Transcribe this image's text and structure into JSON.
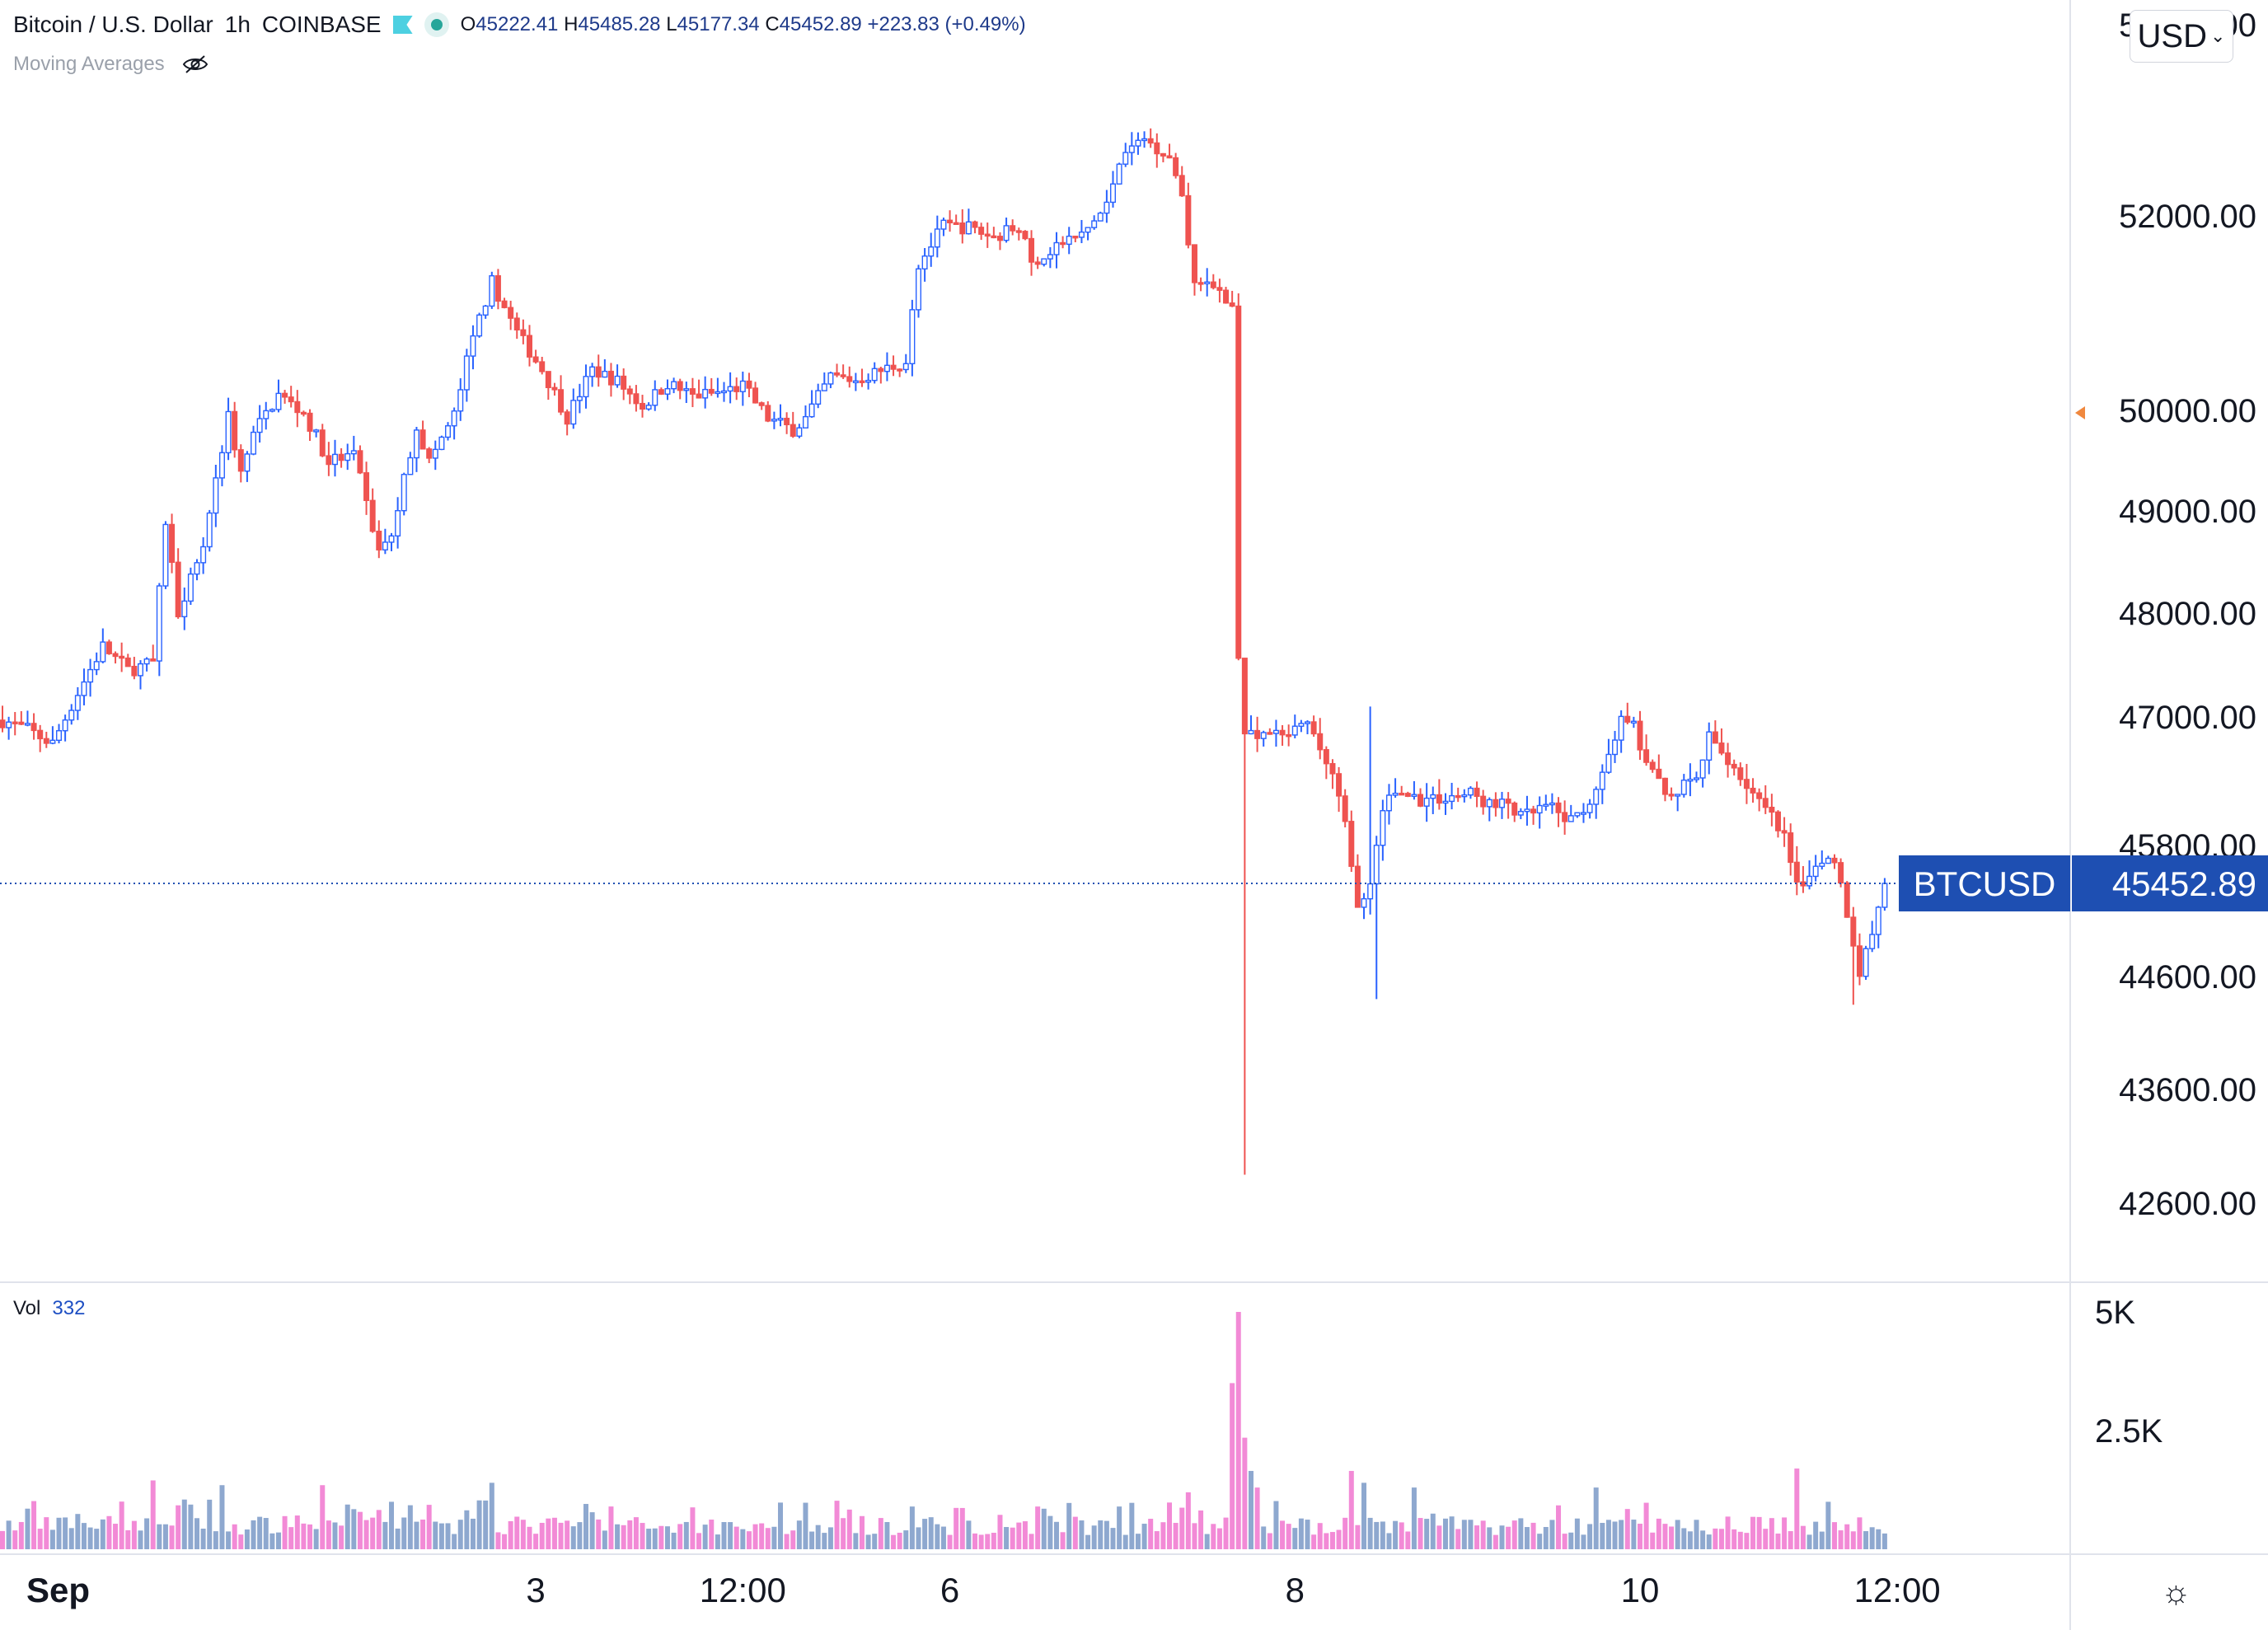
{
  "header": {
    "symbol": "Bitcoin / U.S. Dollar",
    "interval": "1h",
    "exchange": "COINBASE",
    "open_label": "O",
    "open": "45222.41",
    "high_label": "H",
    "high": "45485.28",
    "low_label": "L",
    "low": "45177.34",
    "close_label": "C",
    "close": "45452.89",
    "change": "+223.83 (+0.49%)",
    "indicator": "Moving Averages",
    "icons": [
      "flag-icon",
      "status-dot-icon",
      "eye-off-icon",
      "chevron-down-icon",
      "gear-icon"
    ]
  },
  "volume_legend": {
    "label": "Vol",
    "value": "332"
  },
  "currency_button": {
    "label": "USD"
  },
  "colors": {
    "up": "#2962FF",
    "down": "#EF5350",
    "vol_up": "#8EA8CF",
    "vol_down": "#F28AD6",
    "axis_text": "#131722",
    "price_tag": "#1E4FB2",
    "grid_line": "#e0e3eb"
  },
  "chart_data": {
    "type": "candlestick",
    "title": "Bitcoin / U.S. Dollar · 1h · COINBASE",
    "y_ticks": [
      "54000.00",
      "52000.00",
      "50000.00",
      "49000.00",
      "48000.00",
      "47000.00",
      "45800.00",
      "44600.00",
      "43600.00",
      "42600.00"
    ],
    "y_tick_values": [
      54000,
      52000,
      50000,
      49000,
      48000,
      47000,
      45800,
      44600,
      43600,
      42600
    ],
    "x_ticks": [
      {
        "label": "Sep",
        "t": 0,
        "bold": true
      },
      {
        "label": "3",
        "t": 85
      },
      {
        "label": "12:00",
        "t": 118
      },
      {
        "label": "6",
        "t": 151
      },
      {
        "label": "8",
        "t": 206
      },
      {
        "label": "10",
        "t": 261
      },
      {
        "label": "12:00",
        "t": 302
      }
    ],
    "current_price": {
      "label": "BTCUSD",
      "value": "45452.89",
      "numeric": 45452.89
    },
    "volume_ticks": [
      {
        "label": "5K",
        "value": 5000
      },
      {
        "label": "2.5K",
        "value": 2500
      }
    ],
    "waypoints": [
      [
        0,
        46970
      ],
      [
        4,
        46880
      ],
      [
        8,
        46750
      ],
      [
        12,
        47230
      ],
      [
        16,
        47680
      ],
      [
        20,
        47450
      ],
      [
        24,
        47520
      ],
      [
        26,
        48900
      ],
      [
        28,
        48020
      ],
      [
        32,
        48670
      ],
      [
        36,
        49950
      ],
      [
        38,
        49360
      ],
      [
        40,
        49760
      ],
      [
        44,
        50160
      ],
      [
        48,
        49970
      ],
      [
        52,
        49500
      ],
      [
        56,
        49550
      ],
      [
        60,
        48600
      ],
      [
        62,
        48770
      ],
      [
        66,
        49850
      ],
      [
        68,
        49490
      ],
      [
        72,
        49950
      ],
      [
        74,
        50500
      ],
      [
        76,
        50950
      ],
      [
        78,
        51320
      ],
      [
        82,
        50800
      ],
      [
        86,
        50420
      ],
      [
        90,
        49930
      ],
      [
        94,
        50420
      ],
      [
        98,
        50300
      ],
      [
        102,
        50040
      ],
      [
        106,
        50280
      ],
      [
        110,
        50150
      ],
      [
        114,
        50180
      ],
      [
        118,
        50250
      ],
      [
        122,
        49920
      ],
      [
        126,
        49810
      ],
      [
        128,
        49920
      ],
      [
        132,
        50350
      ],
      [
        136,
        50310
      ],
      [
        140,
        50410
      ],
      [
        144,
        50500
      ],
      [
        146,
        51500
      ],
      [
        150,
        51900
      ],
      [
        154,
        51880
      ],
      [
        158,
        51780
      ],
      [
        162,
        51910
      ],
      [
        164,
        51500
      ],
      [
        168,
        51700
      ],
      [
        172,
        51800
      ],
      [
        176,
        52100
      ],
      [
        178,
        52600
      ],
      [
        182,
        52810
      ],
      [
        186,
        52620
      ],
      [
        188,
        52240
      ],
      [
        190,
        51300
      ],
      [
        194,
        51250
      ],
      [
        196,
        51050
      ],
      [
        197,
        47550
      ],
      [
        198,
        46850
      ],
      [
        200,
        46850
      ],
      [
        204,
        46800
      ],
      [
        208,
        46920
      ],
      [
        210,
        46700
      ],
      [
        212,
        46450
      ],
      [
        214,
        45980
      ],
      [
        216,
        45180
      ],
      [
        218,
        45450
      ],
      [
        220,
        46150
      ],
      [
        222,
        46300
      ],
      [
        226,
        46230
      ],
      [
        230,
        46250
      ],
      [
        234,
        46280
      ],
      [
        238,
        46150
      ],
      [
        240,
        46200
      ],
      [
        242,
        46050
      ],
      [
        246,
        46160
      ],
      [
        250,
        46030
      ],
      [
        254,
        46280
      ],
      [
        256,
        46700
      ],
      [
        258,
        46950
      ],
      [
        260,
        46930
      ],
      [
        262,
        46520
      ],
      [
        266,
        46280
      ],
      [
        270,
        46420
      ],
      [
        272,
        46800
      ],
      [
        276,
        46530
      ],
      [
        280,
        46200
      ],
      [
        282,
        46050
      ],
      [
        284,
        45850
      ],
      [
        286,
        45400
      ],
      [
        288,
        45550
      ],
      [
        290,
        45700
      ],
      [
        292,
        45680
      ],
      [
        294,
        45200
      ],
      [
        296,
        44650
      ],
      [
        298,
        45000
      ],
      [
        300,
        45452.89
      ]
    ],
    "special_wicks": [
      {
        "t": 198,
        "low": 42850,
        "high": 47400
      },
      {
        "t": 219,
        "low": 44400
      },
      {
        "t": 218,
        "high": 47100
      },
      {
        "t": 295,
        "low": 44350
      }
    ],
    "volume_spikes": [
      {
        "t": 197,
        "value": 5000
      },
      {
        "t": 196,
        "value": 3500
      },
      {
        "t": 198,
        "value": 2350
      },
      {
        "t": 199,
        "value": 1650
      },
      {
        "t": 200,
        "value": 1300
      },
      {
        "t": 189,
        "value": 1200
      },
      {
        "t": 215,
        "value": 1650
      },
      {
        "t": 217,
        "value": 1400
      },
      {
        "t": 225,
        "value": 1300
      },
      {
        "t": 254,
        "value": 1300
      },
      {
        "t": 286,
        "value": 1700
      },
      {
        "t": 291,
        "value": 1000
      },
      {
        "t": 24,
        "value": 1450
      },
      {
        "t": 35,
        "value": 1350
      },
      {
        "t": 51,
        "value": 1350
      },
      {
        "t": 78,
        "value": 1400
      },
      {
        "t": 62,
        "value": 1000
      },
      {
        "t": 145,
        "value": 900
      },
      {
        "t": 165,
        "value": 900
      },
      {
        "t": 178,
        "value": 900
      }
    ],
    "t_range": [
      0,
      330
    ],
    "ylim_price": [
      42300,
      54200
    ],
    "ylim_volume": [
      0,
      5000
    ]
  }
}
